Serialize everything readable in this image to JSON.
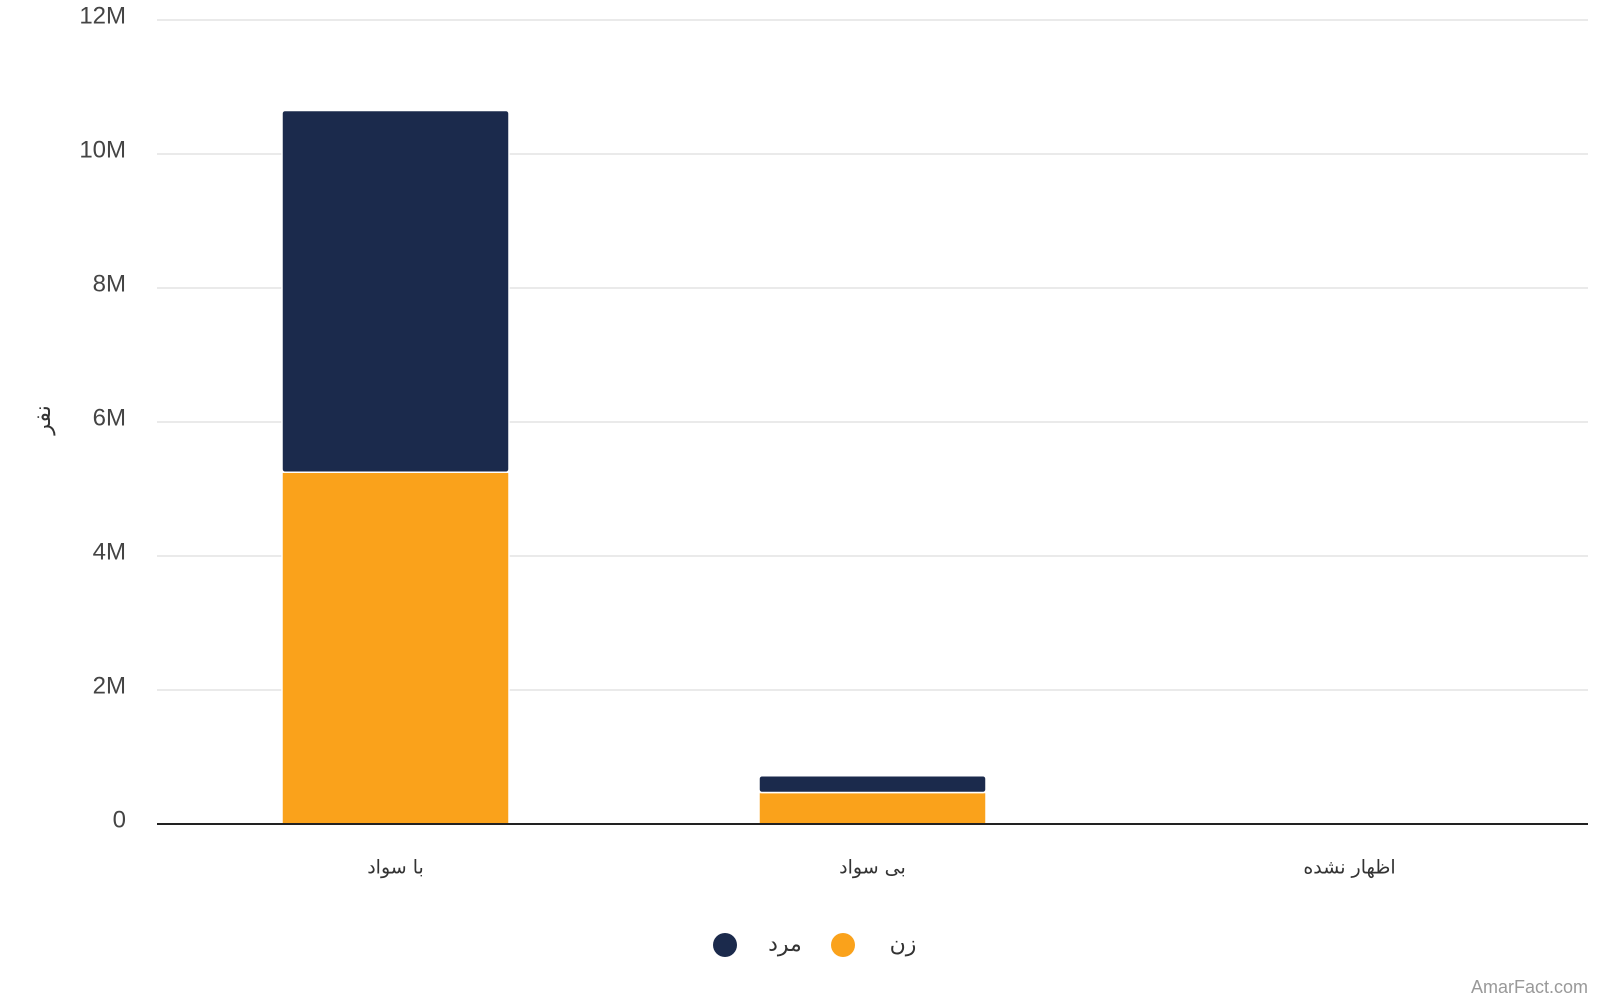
{
  "chart_data": {
    "type": "stacked_bar",
    "y_label": "نفر",
    "categories": [
      "با سواد",
      "بی سواد",
      "اظهار نشده"
    ],
    "series": [
      {
        "name": "زن",
        "color": "#faa21b",
        "values": [
          5250000,
          470000,
          0
        ]
      },
      {
        "name": "مرد",
        "color": "#1b2a4c",
        "values": [
          5400000,
          250000,
          0
        ]
      }
    ],
    "ylim": [
      0,
      12000000
    ],
    "yticks": [
      0,
      {
        "value": 2000000,
        "label": "2M"
      },
      {
        "value": 4000000,
        "label": "4M"
      },
      {
        "value": 6000000,
        "label": "6M"
      },
      {
        "value": 8000000,
        "label": "8M"
      },
      {
        "value": 10000000,
        "label": "10M"
      },
      {
        "value": 12000000,
        "label": "12M"
      }
    ],
    "grid": true,
    "legend": "bottom",
    "watermark": "AmarFact.com"
  }
}
